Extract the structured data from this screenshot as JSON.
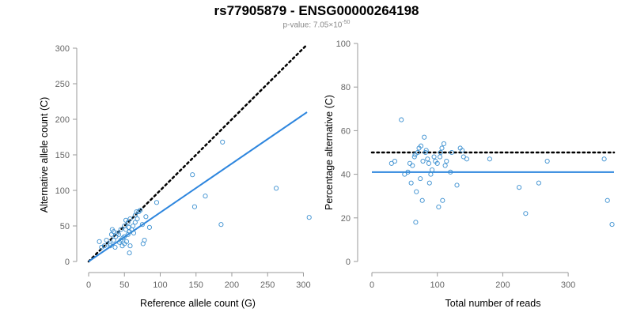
{
  "title": "rs77905879 - ENSG00000264198",
  "subtitle": {
    "prefix": "p-value: 7.05×10",
    "exponent": "-50"
  },
  "colors": {
    "points": "#3a8fd0",
    "fit_line": "#2e86de",
    "reference_line": "#000000",
    "axis": "#999999"
  },
  "chart_data": [
    {
      "type": "scatter",
      "xlabel": "Reference allele count (G)",
      "ylabel": "Alternative allele count (C)",
      "xlim": [
        0,
        305
      ],
      "ylim": [
        0,
        300
      ],
      "xticks": [
        0,
        50,
        100,
        150,
        200,
        250,
        300
      ],
      "yticks": [
        0,
        50,
        100,
        150,
        200,
        250,
        300
      ],
      "grid": false,
      "reference_line": {
        "style": "dotted",
        "x": [
          0,
          305
        ],
        "y": [
          0,
          305
        ]
      },
      "fit_line": {
        "style": "solid",
        "x": [
          0,
          305
        ],
        "y": [
          0,
          210
        ]
      },
      "points": [
        [
          15,
          28
        ],
        [
          18,
          20
        ],
        [
          22,
          22
        ],
        [
          25,
          30
        ],
        [
          30,
          22
        ],
        [
          30,
          25
        ],
        [
          32,
          38
        ],
        [
          33,
          45
        ],
        [
          35,
          30
        ],
        [
          35,
          42
        ],
        [
          37,
          20
        ],
        [
          38,
          35
        ],
        [
          40,
          40
        ],
        [
          42,
          38
        ],
        [
          43,
          27
        ],
        [
          45,
          30
        ],
        [
          45,
          45
        ],
        [
          47,
          22
        ],
        [
          48,
          33
        ],
        [
          50,
          25
        ],
        [
          50,
          35
        ],
        [
          50,
          50
        ],
        [
          52,
          45
        ],
        [
          52,
          58
        ],
        [
          53,
          28
        ],
        [
          55,
          38
        ],
        [
          55,
          55
        ],
        [
          56,
          48
        ],
        [
          57,
          42
        ],
        [
          57,
          12
        ],
        [
          58,
          60
        ],
        [
          58,
          22
        ],
        [
          60,
          45
        ],
        [
          62,
          50
        ],
        [
          63,
          40
        ],
        [
          65,
          55
        ],
        [
          65,
          65
        ],
        [
          67,
          70
        ],
        [
          68,
          60
        ],
        [
          70,
          70
        ],
        [
          72,
          72
        ],
        [
          75,
          52
        ],
        [
          76,
          25
        ],
        [
          78,
          30
        ],
        [
          80,
          63
        ],
        [
          85,
          48
        ],
        [
          95,
          83
        ],
        [
          145,
          122
        ],
        [
          148,
          77
        ],
        [
          163,
          92
        ],
        [
          185,
          52
        ],
        [
          187,
          168
        ],
        [
          262,
          103
        ],
        [
          308,
          62
        ]
      ]
    },
    {
      "type": "scatter",
      "xlabel": "Total number of reads",
      "ylabel": "Percentage alternative (C)",
      "xlim": [
        0,
        370
      ],
      "ylim": [
        0,
        100
      ],
      "xticks": [
        0,
        100,
        200,
        300
      ],
      "yticks": [
        0,
        20,
        40,
        60,
        80,
        100
      ],
      "grid": false,
      "reference_line": {
        "style": "dotted",
        "y": 50
      },
      "fit_line": {
        "style": "solid",
        "y": 41
      },
      "points": [
        [
          30,
          45
        ],
        [
          35,
          46
        ],
        [
          45,
          65
        ],
        [
          50,
          40
        ],
        [
          55,
          41
        ],
        [
          58,
          45
        ],
        [
          60,
          36
        ],
        [
          62,
          44
        ],
        [
          65,
          48
        ],
        [
          66,
          49
        ],
        [
          67,
          18
        ],
        [
          68,
          32
        ],
        [
          70,
          50
        ],
        [
          72,
          52
        ],
        [
          74,
          38
        ],
        [
          75,
          53
        ],
        [
          77,
          28
        ],
        [
          78,
          46
        ],
        [
          80,
          57
        ],
        [
          82,
          50
        ],
        [
          83,
          51
        ],
        [
          85,
          47
        ],
        [
          87,
          45
        ],
        [
          88,
          36
        ],
        [
          90,
          40
        ],
        [
          92,
          42
        ],
        [
          95,
          48
        ],
        [
          97,
          46
        ],
        [
          100,
          45
        ],
        [
          102,
          25
        ],
        [
          104,
          48
        ],
        [
          105,
          50
        ],
        [
          107,
          52
        ],
        [
          108,
          28
        ],
        [
          110,
          54
        ],
        [
          112,
          44
        ],
        [
          114,
          46
        ],
        [
          120,
          41
        ],
        [
          122,
          50
        ],
        [
          130,
          35
        ],
        [
          135,
          52
        ],
        [
          138,
          51
        ],
        [
          140,
          48
        ],
        [
          145,
          47
        ],
        [
          180,
          47
        ],
        [
          225,
          34
        ],
        [
          235,
          22
        ],
        [
          255,
          36
        ],
        [
          268,
          46
        ],
        [
          355,
          47
        ],
        [
          360,
          28
        ],
        [
          367,
          17
        ]
      ]
    }
  ]
}
